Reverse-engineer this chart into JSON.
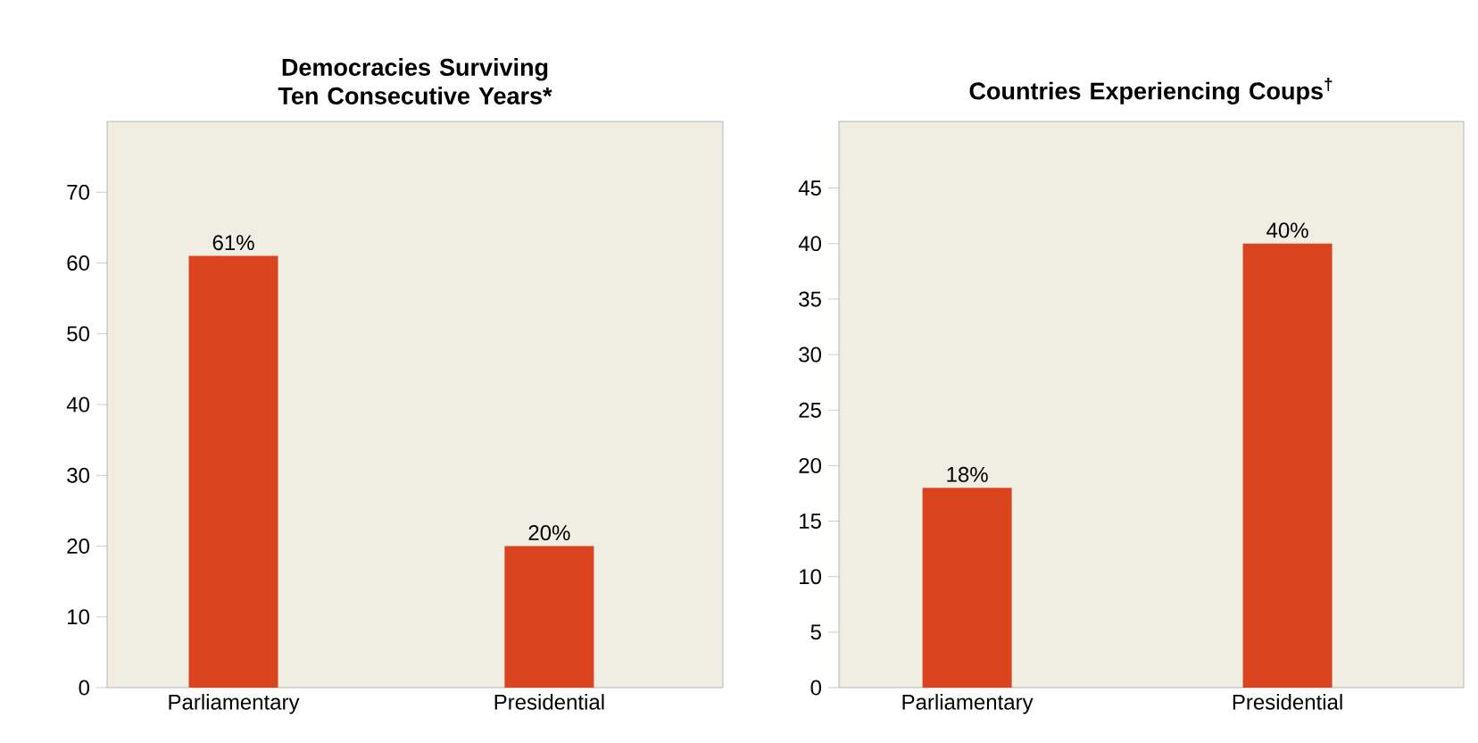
{
  "chart_data": [
    {
      "type": "bar",
      "title": "Democracies Surviving Ten Consecutive Years*",
      "categories": [
        "Parliamentary",
        "Presidential"
      ],
      "values": [
        61,
        20
      ],
      "value_labels": [
        "61%",
        "20%"
      ],
      "color": "#d9441f",
      "ylim": [
        0,
        80
      ],
      "yticks": [
        0,
        10,
        20,
        30,
        40,
        50,
        60,
        70
      ],
      "grid": false
    },
    {
      "type": "bar",
      "title": "Countries Experiencing Coups$^{†}$",
      "categories": [
        "Parliamentary",
        "Presidential"
      ],
      "values": [
        18,
        40
      ],
      "value_labels": [
        "18%",
        "40%"
      ],
      "color": "#d9441f",
      "ylim": [
        0,
        51
      ],
      "yticks": [
        0,
        5,
        10,
        15,
        20,
        25,
        30,
        35,
        40,
        45
      ],
      "grid": false
    }
  ]
}
